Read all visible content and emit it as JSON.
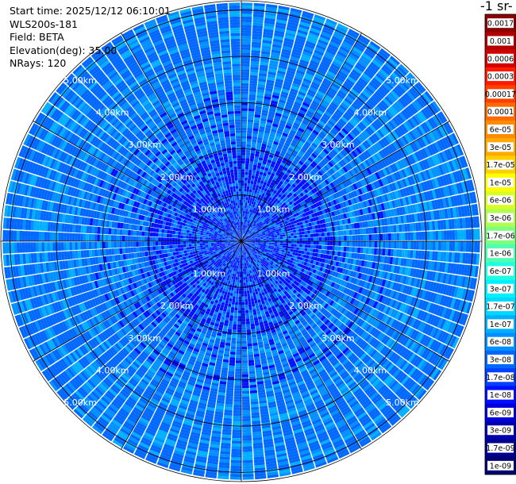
{
  "info": {
    "start_time": "Start time: 2025/12/12 06:10:01",
    "instrument": "WLS200s-181",
    "field": "Field: BETA",
    "elevation": "Elevation(deg): 35.00",
    "nrays": "NRays: 120"
  },
  "colorbar_title": "-1 sr-",
  "chart_data": {
    "type": "heatmap",
    "projection": "polar (PPI scan)",
    "field": "BETA",
    "elevation_deg": 35.0,
    "n_rays": 120,
    "range_rings": [
      {
        "label": "1.00km",
        "value": 1.0
      },
      {
        "label": "2.00km",
        "value": 2.0
      },
      {
        "label": "3.00km",
        "value": 3.0
      },
      {
        "label": "4.00km",
        "value": 4.0
      },
      {
        "label": "5.00km",
        "value": 5.0
      }
    ],
    "max_range_km": 5.2,
    "colorbar": {
      "scale": "log",
      "levels": [
        {
          "label": "0.0017",
          "color": "#8b0000"
        },
        {
          "label": "0.001",
          "color": "#b00000"
        },
        {
          "label": "0.0006",
          "color": "#d40000"
        },
        {
          "label": "0.0003",
          "color": "#ff1a00"
        },
        {
          "label": "0.00017",
          "color": "#ff4000"
        },
        {
          "label": "0.0001",
          "color": "#ff6a00"
        },
        {
          "label": "6e-05",
          "color": "#ff8c00"
        },
        {
          "label": "3e-05",
          "color": "#ffaa00"
        },
        {
          "label": "1.7e-05",
          "color": "#ffd000"
        },
        {
          "label": "1e-05",
          "color": "#ffff00"
        },
        {
          "label": "6e-06",
          "color": "#d8ff20"
        },
        {
          "label": "3e-06",
          "color": "#b0ff50"
        },
        {
          "label": "1.7e-06",
          "color": "#7dff80"
        },
        {
          "label": "1e-06",
          "color": "#50ffb0"
        },
        {
          "label": "6e-07",
          "color": "#20ffe0"
        },
        {
          "label": "3e-07",
          "color": "#00f0ff"
        },
        {
          "label": "1.7e-07",
          "color": "#00d8ff"
        },
        {
          "label": "1e-07",
          "color": "#00b0ff"
        },
        {
          "label": "6e-08",
          "color": "#0090ff"
        },
        {
          "label": "3e-08",
          "color": "#0068ff"
        },
        {
          "label": "1.7e-08",
          "color": "#0040ff"
        },
        {
          "label": "1e-08",
          "color": "#0010ff"
        },
        {
          "label": "6e-09",
          "color": "#0000dd"
        },
        {
          "label": "3e-09",
          "color": "#0000b0"
        },
        {
          "label": "1.7e-09",
          "color": "#000090"
        },
        {
          "label": "1e-09",
          "color": "#000070"
        }
      ]
    },
    "dominant_levels": [
      "3e-08",
      "6e-08",
      "1e-07",
      "1e-08"
    ],
    "grid": true
  }
}
